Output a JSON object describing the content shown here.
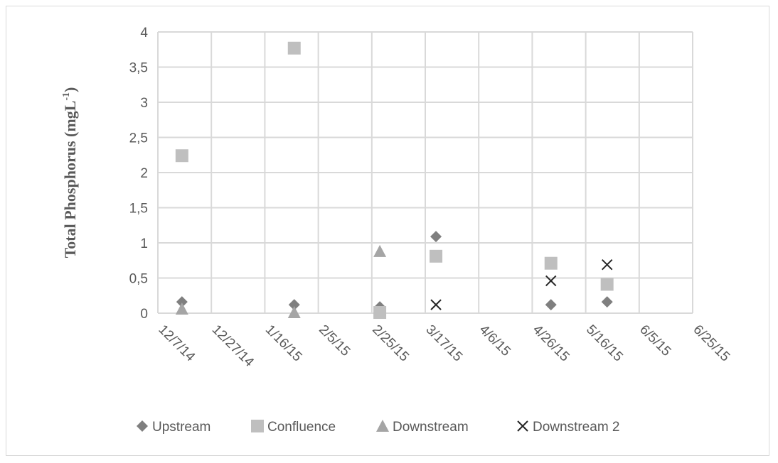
{
  "chart_data": {
    "type": "scatter",
    "title": "",
    "xlabel": "",
    "ylabel": {
      "main": "Total  Phosphorus (mgL",
      "superscript": "-1",
      "close": ")"
    },
    "x_ticks": [
      "12/7/14",
      "12/27/14",
      "1/16/15",
      "2/5/15",
      "2/25/15",
      "3/17/15",
      "4/6/15",
      "4/26/15",
      "5/16/15",
      "6/5/15",
      "6/25/15"
    ],
    "x_range": [
      "12/7/14",
      "6/25/15"
    ],
    "y_ticks": [
      "0",
      "0,5",
      "1",
      "1,5",
      "2",
      "2,5",
      "3",
      "3,5",
      "4"
    ],
    "ylim": [
      0,
      4
    ],
    "grid": true,
    "legend_position": "bottom",
    "series": [
      {
        "name": "Upstream",
        "marker": "diamond",
        "color": "#7f7f7f",
        "points": [
          {
            "x": "12/16/14",
            "y": 0.16
          },
          {
            "x": "1/27/15",
            "y": 0.12
          },
          {
            "x": "2/28/15",
            "y": 0.09
          },
          {
            "x": "3/21/15",
            "y": 1.09
          },
          {
            "x": "5/3/15",
            "y": 0.12
          },
          {
            "x": "5/24/15",
            "y": 0.16
          }
        ]
      },
      {
        "name": "Confluence",
        "marker": "square",
        "color": "#bfbfbf",
        "points": [
          {
            "x": "12/16/14",
            "y": 2.24
          },
          {
            "x": "1/27/15",
            "y": 3.77
          },
          {
            "x": "2/28/15",
            "y": 0.01
          },
          {
            "x": "3/21/15",
            "y": 0.81
          },
          {
            "x": "5/3/15",
            "y": 0.71
          },
          {
            "x": "5/24/15",
            "y": 0.41
          }
        ]
      },
      {
        "name": "Downstream",
        "marker": "triangle",
        "color": "#a5a5a5",
        "points": [
          {
            "x": "12/16/14",
            "y": 0.06
          },
          {
            "x": "1/27/15",
            "y": 0.01
          },
          {
            "x": "2/28/15",
            "y": 0.88
          }
        ]
      },
      {
        "name": "Downstream 2",
        "marker": "x",
        "color": "#262626",
        "points": [
          {
            "x": "3/21/15",
            "y": 0.12
          },
          {
            "x": "5/3/15",
            "y": 0.46
          },
          {
            "x": "5/24/15",
            "y": 0.69
          }
        ]
      }
    ]
  }
}
